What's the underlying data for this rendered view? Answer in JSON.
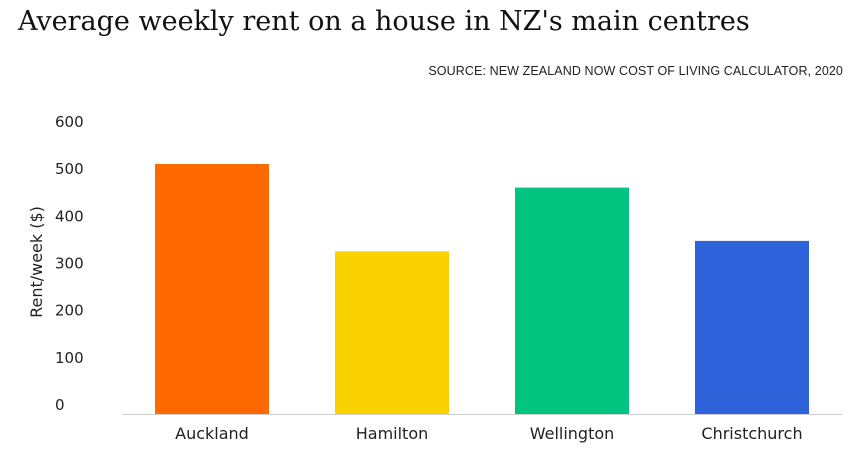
{
  "chart_data": {
    "type": "bar",
    "title": "Average weekly rent on a house in NZ's main centres",
    "source": "SOURCE: NEW ZEALAND NOW COST OF LIVING CALCULATOR,  2020",
    "ylabel": "Rent/week ($)",
    "xlabel": "",
    "ylim": [
      0,
      600
    ],
    "yticks": [
      0,
      100,
      200,
      300,
      400,
      500,
      600
    ],
    "grid": false,
    "categories": [
      "Auckland",
      "Hamilton",
      "Wellington",
      "Christchurch"
    ],
    "values": [
      530,
      345,
      480,
      367
    ],
    "colors": [
      "#ff6a00",
      "#fad200",
      "#00c47f",
      "#2f63db"
    ]
  }
}
